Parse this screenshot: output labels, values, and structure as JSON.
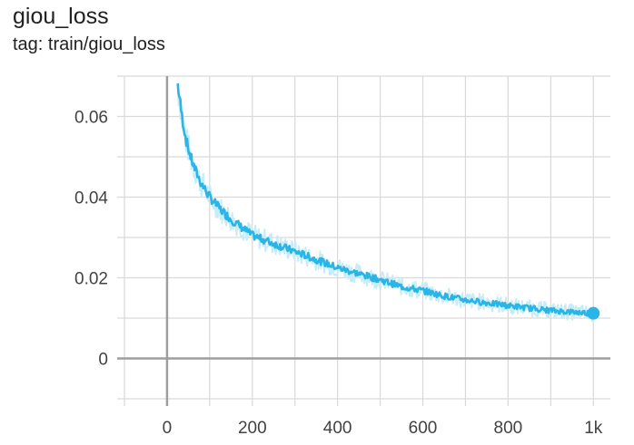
{
  "card": {
    "title": "giou_loss",
    "tag": "tag: train/giou_loss"
  },
  "chart_data": {
    "type": "line",
    "title": "giou_loss",
    "subtitle": "tag: train/giou_loss",
    "xlabel": "",
    "ylabel": "",
    "xlim": [
      -100,
      1040
    ],
    "ylim": [
      -0.01,
      0.07
    ],
    "x_ticks": [
      0,
      200,
      400,
      600,
      800,
      1000
    ],
    "x_tick_labels": [
      "0",
      "200",
      "400",
      "600",
      "800",
      "1k"
    ],
    "y_ticks": [
      0,
      0.02,
      0.04,
      0.06
    ],
    "y_tick_labels": [
      "0",
      "0.02",
      "0.04",
      "0.06"
    ],
    "grid": true,
    "smoothing_shown": true,
    "series": [
      {
        "color": "#29b6e6",
        "raw_color": "#c8ecf7",
        "x": [
          25,
          35,
          45,
          55,
          65,
          80,
          100,
          125,
          150,
          175,
          200,
          250,
          300,
          350,
          400,
          450,
          500,
          550,
          600,
          650,
          700,
          750,
          800,
          850,
          900,
          950,
          1000
        ],
        "values": [
          0.068,
          0.06,
          0.054,
          0.05,
          0.047,
          0.0435,
          0.04,
          0.037,
          0.0345,
          0.0325,
          0.0305,
          0.0285,
          0.0265,
          0.0245,
          0.0225,
          0.021,
          0.0195,
          0.0178,
          0.0168,
          0.0155,
          0.0145,
          0.0138,
          0.0131,
          0.0125,
          0.0119,
          0.0115,
          0.0112
        ]
      }
    ],
    "last_point": {
      "x": 1000,
      "y": 0.0112
    }
  }
}
